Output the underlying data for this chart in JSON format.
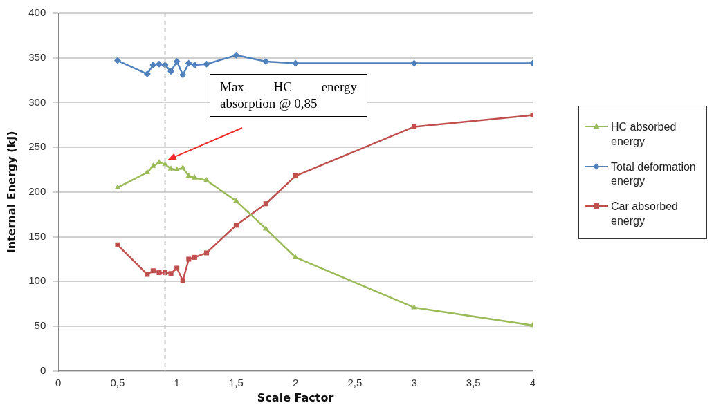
{
  "chart_data": {
    "type": "line",
    "xlabel": "Scale Factor",
    "ylabel": "Internal Energy (kJ)",
    "x": [
      0.5,
      0.75,
      0.8,
      0.85,
      0.9,
      0.95,
      1.0,
      1.05,
      1.1,
      1.15,
      1.25,
      1.5,
      1.75,
      2,
      3,
      4
    ],
    "series": [
      {
        "name": "HC absorbed energy",
        "color": "#9bbb59",
        "marker": "triangle",
        "values": [
          205,
          222,
          229,
          233,
          231,
          226,
          225,
          227,
          218,
          216,
          213,
          190,
          159,
          127,
          71,
          51
        ]
      },
      {
        "name": "Total deformation energy",
        "color": "#4f81bd",
        "marker": "diamond",
        "values": [
          347,
          332,
          342,
          343,
          342,
          335,
          346,
          331,
          344,
          342,
          343,
          353,
          346,
          344,
          344,
          344
        ]
      },
      {
        "name": "Car absorbed energy",
        "color": "#c0504d",
        "marker": "square",
        "values": [
          141,
          108,
          112,
          110,
          110,
          109,
          115,
          101,
          125,
          127,
          132,
          163,
          187,
          218,
          273,
          286
        ]
      }
    ],
    "xlim": [
      0,
      4
    ],
    "xticks": [
      0,
      {
        "value": 0.5,
        "label": "0,5"
      },
      1,
      {
        "value": 1.5,
        "label": "1,5"
      },
      2,
      {
        "value": 2.5,
        "label": "2,5"
      },
      3,
      {
        "value": 3.5,
        "label": "3,5"
      },
      4
    ],
    "ylim": [
      0,
      400
    ],
    "yticks": [
      0,
      50,
      100,
      150,
      200,
      250,
      300,
      350,
      400
    ],
    "grid": "y",
    "legend": "right",
    "line_style": "solid",
    "ref_lines": [
      {
        "axis": "x",
        "value": 0.9,
        "color": "#bfbfbf",
        "line_style": "dashed"
      }
    ],
    "annotations": [
      "Max HC energy absorption @ 0,85"
    ]
  }
}
